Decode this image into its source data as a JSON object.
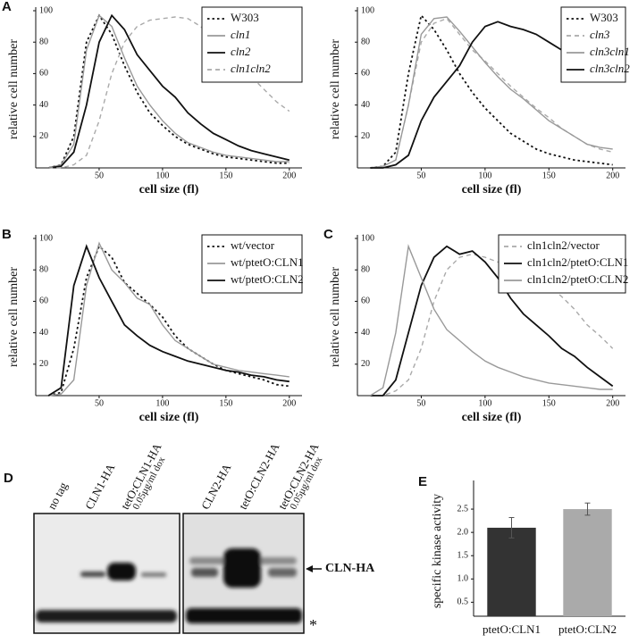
{
  "chart_data": [
    {
      "type": "line",
      "panel": "A",
      "xlabel": "cell size (fl)",
      "ylabel": "relative cell number",
      "x": [
        10,
        20,
        30,
        40,
        50,
        60,
        70,
        80,
        90,
        100,
        110,
        120,
        130,
        140,
        150,
        160,
        170,
        180,
        190,
        200
      ],
      "xlim": [
        0,
        210
      ],
      "xticks": [
        50,
        100,
        150,
        200
      ],
      "ylim": [
        0,
        100
      ],
      "yticks": [
        20,
        40,
        60,
        80,
        100
      ],
      "legend": "upper right",
      "series": [
        {
          "name": "W303",
          "color": "#111111",
          "dash": "dotted",
          "italic": false,
          "values": [
            0,
            2,
            20,
            80,
            97,
            85,
            65,
            48,
            35,
            27,
            20,
            15,
            12,
            9,
            7,
            6,
            5,
            4,
            3,
            3
          ]
        },
        {
          "name": "cln1",
          "color": "#999999",
          "dash": "solid",
          "italic": true,
          "values": [
            0,
            2,
            15,
            75,
            97,
            90,
            70,
            52,
            40,
            30,
            22,
            16,
            13,
            10,
            8,
            7,
            6,
            5,
            4,
            4
          ]
        },
        {
          "name": "cln2",
          "color": "#111111",
          "dash": "solid",
          "italic": true,
          "values": [
            0,
            1,
            10,
            40,
            80,
            97,
            88,
            72,
            62,
            52,
            45,
            35,
            28,
            22,
            18,
            14,
            11,
            9,
            7,
            5
          ]
        },
        {
          "name": "cln1cln2",
          "color": "#aaaaaa",
          "dash": "dashed",
          "italic": true,
          "values": [
            0,
            0,
            2,
            8,
            30,
            60,
            80,
            90,
            94,
            95,
            96,
            95,
            90,
            82,
            75,
            65,
            58,
            50,
            42,
            36
          ]
        }
      ]
    },
    {
      "type": "line",
      "xlabel": "cell size (fl)",
      "ylabel": "relative cell number",
      "x": [
        10,
        20,
        30,
        40,
        50,
        60,
        70,
        80,
        90,
        100,
        110,
        120,
        130,
        140,
        150,
        160,
        170,
        180,
        190,
        200
      ],
      "xlim": [
        0,
        210
      ],
      "xticks": [
        50,
        100,
        150,
        200
      ],
      "ylim": [
        0,
        100
      ],
      "yticks": [
        20,
        40,
        60,
        80,
        100
      ],
      "legend": "upper right",
      "series": [
        {
          "name": "W303",
          "color": "#111111",
          "dash": "dotted",
          "italic": false,
          "values": [
            0,
            1,
            10,
            60,
            97,
            88,
            75,
            60,
            48,
            38,
            30,
            22,
            17,
            12,
            9,
            7,
            5,
            4,
            3,
            2
          ]
        },
        {
          "name": "cln3",
          "color": "#aaaaaa",
          "dash": "dashed",
          "italic": true,
          "values": [
            0,
            1,
            5,
            40,
            80,
            92,
            95,
            85,
            75,
            68,
            60,
            52,
            45,
            38,
            32,
            25,
            20,
            15,
            12,
            10
          ]
        },
        {
          "name": "cln3cln1",
          "color": "#999999",
          "dash": "solid",
          "italic": true,
          "values": [
            0,
            1,
            5,
            40,
            85,
            95,
            96,
            87,
            77,
            67,
            58,
            50,
            44,
            37,
            30,
            25,
            20,
            15,
            13,
            12
          ]
        },
        {
          "name": "cln3cln2",
          "color": "#111111",
          "dash": "solid",
          "italic": true,
          "values": [
            0,
            0,
            2,
            8,
            30,
            45,
            55,
            65,
            80,
            90,
            93,
            90,
            88,
            85,
            80,
            75,
            70,
            67,
            62,
            58
          ]
        }
      ]
    },
    {
      "type": "line",
      "panel": "B",
      "xlabel": "cell size (fl)",
      "ylabel": "relative cell number",
      "x": [
        10,
        20,
        30,
        40,
        50,
        60,
        70,
        80,
        90,
        100,
        110,
        120,
        130,
        140,
        150,
        160,
        170,
        180,
        190,
        200
      ],
      "xlim": [
        0,
        210
      ],
      "xticks": [
        50,
        100,
        150,
        200
      ],
      "ylim": [
        0,
        100
      ],
      "yticks": [
        20,
        40,
        60,
        80,
        100
      ],
      "legend": "upper right",
      "series": [
        {
          "name": "wt/vector",
          "color": "#111111",
          "dash": "dotted",
          "italic": false,
          "values": [
            0,
            2,
            30,
            75,
            95,
            88,
            72,
            65,
            58,
            50,
            38,
            30,
            25,
            20,
            16,
            14,
            12,
            10,
            7,
            6
          ]
        },
        {
          "name": "wt/ptetO:CLN1",
          "color": "#999999",
          "dash": "solid",
          "italic": false,
          "values": [
            0,
            1,
            10,
            70,
            97,
            80,
            72,
            62,
            58,
            45,
            35,
            30,
            25,
            20,
            18,
            16,
            15,
            14,
            13,
            12
          ]
        },
        {
          "name": "wt/ptetO:CLN2",
          "color": "#111111",
          "dash": "solid",
          "italic": false,
          "values": [
            0,
            5,
            70,
            95,
            75,
            60,
            45,
            38,
            32,
            28,
            25,
            22,
            20,
            18,
            16,
            15,
            13,
            12,
            10,
            9
          ]
        }
      ]
    },
    {
      "type": "line",
      "panel": "C",
      "xlabel": "cell size (fl)",
      "ylabel": "relative cell number",
      "x": [
        10,
        20,
        30,
        40,
        50,
        60,
        70,
        80,
        90,
        100,
        110,
        120,
        130,
        140,
        150,
        160,
        170,
        180,
        190,
        200
      ],
      "xlim": [
        0,
        210
      ],
      "xticks": [
        50,
        100,
        150,
        200
      ],
      "ylim": [
        0,
        100
      ],
      "yticks": [
        20,
        40,
        60,
        80,
        100
      ],
      "legend": "upper right",
      "series": [
        {
          "name": "cln1cln2/vector",
          "color": "#aaaaaa",
          "dash": "dashed",
          "italic": false,
          "values": [
            0,
            0,
            3,
            10,
            30,
            60,
            80,
            88,
            90,
            88,
            85,
            85,
            80,
            75,
            70,
            63,
            55,
            45,
            38,
            30
          ]
        },
        {
          "name": "cln1cln2/ptetO:CLN1",
          "color": "#111111",
          "dash": "solid",
          "italic": false,
          "values": [
            0,
            0,
            10,
            40,
            70,
            88,
            95,
            90,
            92,
            85,
            75,
            62,
            52,
            45,
            38,
            30,
            25,
            18,
            12,
            6
          ]
        },
        {
          "name": "cln1cln2/ptetO:CLN2",
          "color": "#999999",
          "dash": "solid",
          "italic": false,
          "values": [
            0,
            5,
            40,
            95,
            75,
            55,
            42,
            35,
            28,
            22,
            18,
            15,
            12,
            10,
            8,
            7,
            6,
            5,
            4,
            4
          ]
        }
      ]
    },
    {
      "type": "bar",
      "panel": "E",
      "ylabel": "specific kinase activity",
      "categories": [
        "ptetO:CLN1",
        "ptetO:CLN2"
      ],
      "values": [
        2.1,
        2.5
      ],
      "errors": [
        0.22,
        0.13
      ],
      "colors": [
        "#333333",
        "#aaaaaa"
      ],
      "ylim": [
        0.2,
        3.0
      ],
      "yticks": [
        0.5,
        {
          "value": 1,
          "label": "1.0"
        },
        1.5,
        {
          "value": 2,
          "label": "2.0"
        },
        2.5
      ]
    }
  ],
  "blot": {
    "panel": "D",
    "lanes": [
      [
        "no tag"
      ],
      [
        "CLN1-HA"
      ],
      [
        "tetO:CLN1-HA",
        "0.05µg/ml dox"
      ],
      [
        "CLN2-HA"
      ],
      [
        "tetO:CLN2-HA"
      ],
      [
        "tetO:CLN2-HA",
        "0.05µg/ml dox"
      ]
    ],
    "band_label": "CLN-HA",
    "marker": "*"
  }
}
